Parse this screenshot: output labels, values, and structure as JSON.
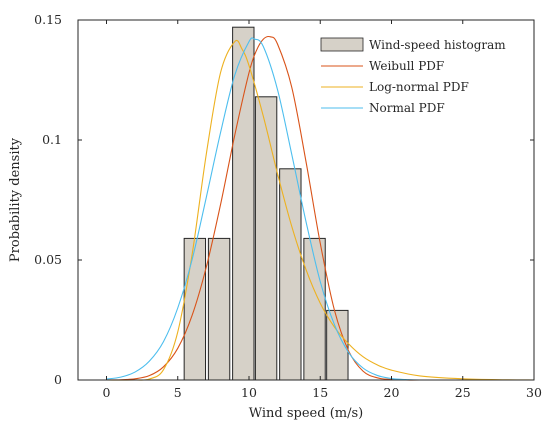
{
  "chart_data": {
    "type": "bar",
    "xlabel": "Wind speed (m/s)",
    "ylabel": "Probability density",
    "xlim": [
      -2,
      30
    ],
    "ylim": [
      0,
      0.15
    ],
    "xticks": [
      0,
      5,
      10,
      15,
      20,
      25,
      30
    ],
    "xtick_labels": [
      "0",
      "5",
      "10",
      "15",
      "20",
      "25",
      "30"
    ],
    "yticks": [
      0,
      0.05,
      0.1,
      0.15
    ],
    "ytick_labels": [
      "0",
      "0.05",
      "0.1",
      "0.15"
    ],
    "grid": false,
    "legend_position": "top-right",
    "histogram": {
      "name": "Wind-speed histogram",
      "bin_width": 1.5,
      "bin_centers": [
        6.2,
        7.9,
        9.6,
        11.2,
        12.9,
        14.6,
        16.2
      ],
      "values": [
        0.059,
        0.059,
        0.147,
        0.118,
        0.088,
        0.059,
        0.029
      ],
      "color": "#d6d1c8"
    },
    "series": [
      {
        "name": "Weibull PDF",
        "color": "#d95319",
        "x": [
          0,
          1,
          2,
          3,
          4,
          5,
          6,
          7,
          8,
          9,
          10,
          10.5,
          11,
          11.5,
          12,
          13,
          14,
          15,
          16,
          17,
          18,
          19,
          20,
          21,
          22,
          25,
          30
        ],
        "y": [
          0,
          0.0001,
          0.0005,
          0.0018,
          0.0055,
          0.0132,
          0.0268,
          0.047,
          0.073,
          0.102,
          0.128,
          0.137,
          0.142,
          0.143,
          0.14,
          0.122,
          0.091,
          0.057,
          0.029,
          0.012,
          0.0037,
          0.0009,
          0.0002,
          0,
          0,
          0,
          0
        ]
      },
      {
        "name": "Log-normal PDF",
        "color": "#edb120",
        "x": [
          0,
          2,
          3,
          4,
          5,
          6,
          7,
          8,
          9,
          9.5,
          10,
          11,
          12,
          13,
          14,
          15,
          16,
          17,
          18,
          19,
          20,
          22,
          25,
          28,
          30
        ],
        "y": [
          0,
          0,
          0.0004,
          0.0043,
          0.02,
          0.052,
          0.094,
          0.128,
          0.141,
          0.138,
          0.131,
          0.11,
          0.086,
          0.064,
          0.046,
          0.032,
          0.022,
          0.015,
          0.0097,
          0.0063,
          0.0041,
          0.0017,
          0.0005,
          0.0001,
          0
        ]
      },
      {
        "name": "Normal PDF",
        "color": "#4dbeee",
        "x": [
          0,
          1,
          2,
          3,
          4,
          5,
          6,
          7,
          8,
          9,
          10,
          10.4,
          11,
          12,
          13,
          14,
          15,
          16,
          17,
          18,
          19,
          20,
          21,
          22,
          25,
          30
        ],
        "y": [
          0.0004,
          0.0012,
          0.0033,
          0.0078,
          0.016,
          0.03,
          0.05,
          0.076,
          0.103,
          0.127,
          0.141,
          0.142,
          0.139,
          0.121,
          0.094,
          0.066,
          0.041,
          0.023,
          0.0114,
          0.005,
          0.0019,
          0.0006,
          0.0002,
          0,
          0,
          0
        ]
      }
    ]
  }
}
